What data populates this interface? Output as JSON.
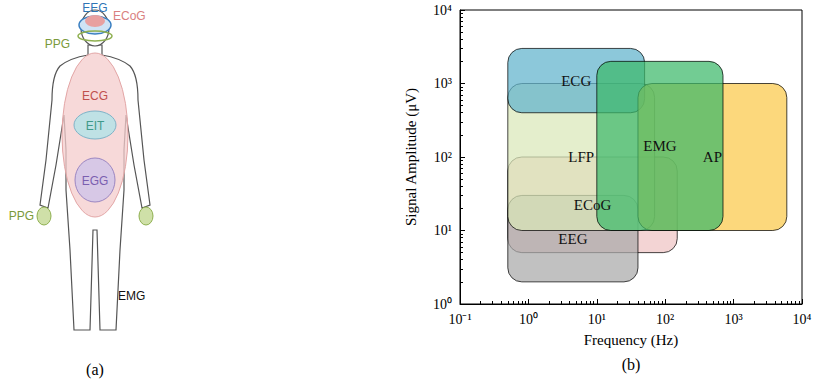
{
  "diagram": {
    "panel_label": "(a)",
    "labels": [
      {
        "text": "EEG",
        "color": "#2e75b6"
      },
      {
        "text": "ECoG",
        "color": "#d98080"
      },
      {
        "text": "PPG",
        "color": "#7a9a3a"
      },
      {
        "text": "ECG",
        "color": "#c0504d"
      },
      {
        "text": "EIT",
        "color": "#3f9a8a"
      },
      {
        "text": "EGG",
        "color": "#7b5fb0"
      },
      {
        "text": "PPG",
        "color": "#7a9a3a"
      },
      {
        "text": "EMG",
        "color": "#111111"
      }
    ]
  },
  "chart_data": {
    "type": "range",
    "panel_label": "(b)",
    "x_label": "Frequency (Hz)",
    "y_label": "Signal Amplitude (μV)",
    "log": true,
    "grid": false,
    "xlim": [
      0.1,
      10000
    ],
    "xticks": [
      {
        "value": 0.1,
        "label": "10⁻¹"
      },
      {
        "value": 1,
        "label": "10⁰"
      },
      {
        "value": 10,
        "label": "10¹"
      },
      {
        "value": 100,
        "label": "10²"
      },
      {
        "value": 1000,
        "label": "10³"
      },
      {
        "value": 10000,
        "label": "10⁴"
      }
    ],
    "ylim": [
      1,
      10000
    ],
    "yticks": [
      {
        "value": 1,
        "label": "10⁰"
      },
      {
        "value": 10,
        "label": "10¹"
      },
      {
        "value": 100,
        "label": "10²"
      },
      {
        "value": 1000,
        "label": "10³"
      },
      {
        "value": 10000,
        "label": "10⁴"
      }
    ],
    "series": [
      {
        "name": "ECoG",
        "color": "#eec3c3",
        "x_range": [
          0.5,
          150
        ],
        "y_range": [
          5,
          100
        ]
      },
      {
        "name": "EEG",
        "color": "#a9a9a9",
        "x_range": [
          0.5,
          40
        ],
        "y_range": [
          2,
          30
        ]
      },
      {
        "name": "LFP",
        "color": "#d9e8b8",
        "x_range": [
          0.5,
          70
        ],
        "y_range": [
          10,
          1000
        ]
      },
      {
        "name": "ECG",
        "color": "#5fb3cc",
        "x_range": [
          0.5,
          50
        ],
        "y_range": [
          400,
          3000
        ]
      },
      {
        "name": "AP",
        "color": "#fbc94a",
        "x_range": [
          40,
          6000
        ],
        "y_range": [
          10,
          1000
        ]
      },
      {
        "name": "EMG",
        "color": "#3cb96a",
        "x_range": [
          10,
          700
        ],
        "y_range": [
          10,
          2000
        ]
      }
    ]
  }
}
